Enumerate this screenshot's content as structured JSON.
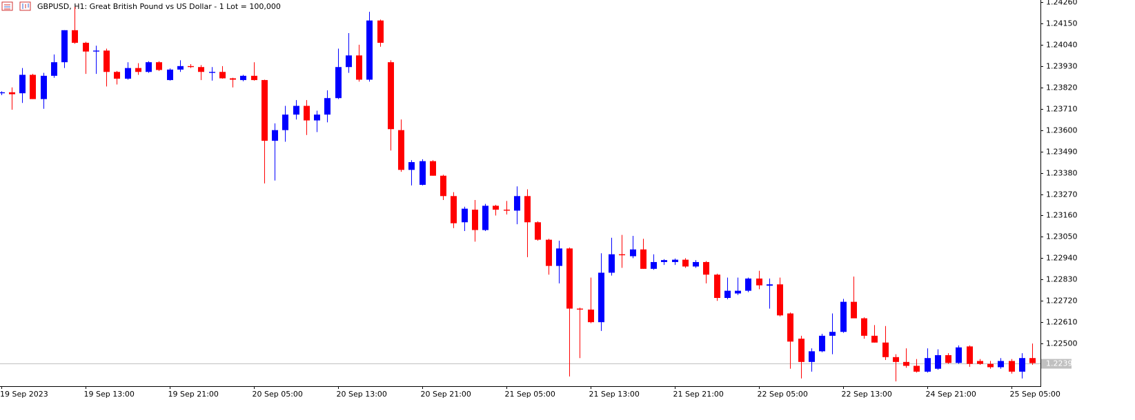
{
  "chart_data": {
    "type": "candlestick",
    "title": "GBPUSD, H1:  Great British Pound vs US Dollar - 1 Lot = 100,000",
    "categories": [
      "19 Sep 2023",
      null,
      null,
      null,
      null,
      null,
      null,
      null,
      "19 Sep 13:00",
      null,
      null,
      null,
      null,
      null,
      null,
      null,
      "19 Sep 21:00",
      null,
      null,
      null,
      null,
      null,
      null,
      null,
      "20 Sep 05:00",
      null,
      null,
      null,
      null,
      null,
      null,
      null,
      "20 Sep 13:00",
      null,
      null,
      null,
      null,
      null,
      null,
      null,
      "20 Sep 21:00",
      null,
      null,
      null,
      null,
      null,
      null,
      null,
      "21 Sep 05:00",
      null,
      null,
      null,
      null,
      null,
      null,
      null,
      "21 Sep 13:00",
      null,
      null,
      null,
      null,
      null,
      null,
      null,
      "21 Sep 21:00",
      null,
      null,
      null,
      null,
      null,
      null,
      null,
      "22 Sep 05:00",
      null,
      null,
      null,
      null,
      null,
      null,
      null,
      "22 Sep 13:00",
      null,
      null,
      null,
      null,
      null,
      null,
      null,
      "24 Sep 21:00",
      null,
      null,
      null,
      null,
      null,
      null,
      null,
      "25 Sep 05:00",
      null,
      null
    ],
    "series": [
      {
        "up_color": "#0000ff",
        "down_color": "#ff0000",
        "open": [
          1.2379,
          1.23795,
          1.2379,
          1.23885,
          1.2376,
          1.2388,
          1.2395,
          1.24115,
          1.2405,
          1.24005,
          1.2401,
          1.239,
          1.23865,
          1.2392,
          1.239,
          1.2395,
          1.23858,
          1.23912,
          1.2393,
          1.23925,
          1.23895,
          1.239,
          1.23867,
          1.23858,
          1.2388,
          1.23858,
          1.23545,
          1.236,
          1.2368,
          1.23725,
          1.2365,
          1.2368,
          1.23765,
          1.23925,
          1.23985,
          1.2386,
          1.24165,
          1.2395,
          1.236,
          1.23395,
          1.23318,
          1.2344,
          1.23365,
          1.2326,
          1.23125,
          1.2319,
          1.23085,
          1.2321,
          1.2319,
          1.23185,
          1.2326,
          1.23125,
          1.23035,
          1.229,
          1.2299,
          1.2268,
          1.22675,
          1.2261,
          1.22865,
          1.2296,
          1.2295,
          1.22985,
          1.22885,
          1.2292,
          1.2292,
          1.22932,
          1.22897,
          1.2292,
          1.22855,
          1.22735,
          1.22758,
          1.22772,
          1.22835,
          1.22798,
          1.22805,
          1.22655,
          1.22525,
          1.22405,
          1.2246,
          1.2254,
          1.2256,
          1.22715,
          1.2263,
          1.2254,
          1.22505,
          1.2243,
          1.22405,
          1.22385,
          1.22355,
          1.2237,
          1.2244,
          1.224,
          1.22485,
          1.2241,
          1.22395,
          1.22378,
          1.2241,
          1.22355,
          1.22425
        ],
        "high": [
          1.238,
          1.2382,
          1.2392,
          1.2389,
          1.23895,
          1.2399,
          1.24115,
          1.24235,
          1.24055,
          1.24035,
          1.2402,
          1.23905,
          1.2395,
          1.23945,
          1.23955,
          1.23955,
          1.23918,
          1.2396,
          1.2394,
          1.23935,
          1.23925,
          1.2393,
          1.2387,
          1.23885,
          1.2395,
          1.2386,
          1.23635,
          1.23725,
          1.23755,
          1.23755,
          1.237,
          1.23805,
          1.2402,
          1.241,
          1.2404,
          1.2421,
          1.2417,
          1.2396,
          1.23655,
          1.23445,
          1.2345,
          1.23445,
          1.2337,
          1.2328,
          1.23205,
          1.2324,
          1.2322,
          1.23215,
          1.23235,
          1.2331,
          1.23295,
          1.2313,
          1.2304,
          1.2303,
          1.22995,
          1.22685,
          1.2284,
          1.22965,
          1.23045,
          1.2306,
          1.23055,
          1.2304,
          1.2296,
          1.22935,
          1.22938,
          1.2294,
          1.2293,
          1.22925,
          1.2286,
          1.2284,
          1.2284,
          1.2284,
          1.22875,
          1.22835,
          1.2284,
          1.2266,
          1.2254,
          1.22475,
          1.2255,
          1.22655,
          1.2273,
          1.22845,
          1.22635,
          1.22595,
          1.2259,
          1.22445,
          1.22475,
          1.2242,
          1.22475,
          1.2247,
          1.2245,
          1.2249,
          1.2249,
          1.2242,
          1.2241,
          1.22425,
          1.2242,
          1.2245,
          1.225
        ],
        "low": [
          1.2378,
          1.23705,
          1.2374,
          1.2376,
          1.2371,
          1.2387,
          1.2392,
          1.24045,
          1.2389,
          1.2389,
          1.23825,
          1.23835,
          1.2386,
          1.23885,
          1.23895,
          1.23905,
          1.23855,
          1.239,
          1.2392,
          1.23858,
          1.23855,
          1.23865,
          1.2382,
          1.23852,
          1.23855,
          1.23325,
          1.2334,
          1.2354,
          1.23655,
          1.23575,
          1.2359,
          1.2364,
          1.2376,
          1.23895,
          1.2385,
          1.2385,
          1.2403,
          1.23495,
          1.23385,
          1.23315,
          1.23315,
          1.23365,
          1.2324,
          1.23095,
          1.2308,
          1.23025,
          1.2308,
          1.2316,
          1.23165,
          1.23115,
          1.22945,
          1.2303,
          1.22855,
          1.2281,
          1.2233,
          1.22425,
          1.22605,
          1.22565,
          1.2285,
          1.2289,
          1.2294,
          1.22885,
          1.2288,
          1.22905,
          1.22905,
          1.2289,
          1.2289,
          1.2281,
          1.2272,
          1.22728,
          1.2275,
          1.22765,
          1.2278,
          1.2268,
          1.2264,
          1.2237,
          1.2232,
          1.22355,
          1.22455,
          1.22445,
          1.22555,
          1.2263,
          1.22525,
          1.22505,
          1.22415,
          1.22305,
          1.22375,
          1.2235,
          1.2235,
          1.22365,
          1.22395,
          1.22395,
          1.2238,
          1.2239,
          1.2237,
          1.2237,
          1.22345,
          1.2232,
          1.2239
        ],
        "close": [
          1.23795,
          1.23785,
          1.23885,
          1.2376,
          1.2388,
          1.2395,
          1.24115,
          1.2405,
          1.24005,
          1.2401,
          1.239,
          1.23865,
          1.2392,
          1.239,
          1.2395,
          1.2391,
          1.23912,
          1.2393,
          1.23925,
          1.239,
          1.239,
          1.23867,
          1.2386,
          1.2388,
          1.23858,
          1.23545,
          1.236,
          1.2368,
          1.23725,
          1.2365,
          1.2368,
          1.23765,
          1.23925,
          1.23985,
          1.2386,
          1.24165,
          1.2405,
          1.23605,
          1.23395,
          1.23435,
          1.2344,
          1.23365,
          1.2326,
          1.2312,
          1.23195,
          1.23085,
          1.2321,
          1.2319,
          1.23185,
          1.2326,
          1.23125,
          1.23035,
          1.229,
          1.2299,
          1.2268,
          1.22675,
          1.2261,
          1.22865,
          1.2296,
          1.22955,
          1.22985,
          1.22885,
          1.2292,
          1.2293,
          1.22932,
          1.22897,
          1.2292,
          1.22855,
          1.22735,
          1.22772,
          1.22772,
          1.22835,
          1.228,
          1.22805,
          1.22645,
          1.2251,
          1.22405,
          1.2246,
          1.2254,
          1.2256,
          1.22715,
          1.2263,
          1.2254,
          1.22505,
          1.2243,
          1.22405,
          1.22385,
          1.22355,
          1.22425,
          1.2244,
          1.224,
          1.2248,
          1.22395,
          1.22395,
          1.22378,
          1.2241,
          1.22355,
          1.22425,
          1.22399
        ]
      }
    ],
    "last_price": 1.22399,
    "ylim": [
      1.2228,
      1.2426
    ],
    "yticks": [
      {
        "value": 1.2426,
        "label": "1.24260"
      },
      {
        "value": 1.2415,
        "label": "1.24150"
      },
      {
        "value": 1.2404,
        "label": "1.24040"
      },
      {
        "value": 1.2393,
        "label": "1.23930"
      },
      {
        "value": 1.2382,
        "label": "1.23820"
      },
      {
        "value": 1.2371,
        "label": "1.23710"
      },
      {
        "value": 1.236,
        "label": "1.23600"
      },
      {
        "value": 1.2349,
        "label": "1.23490"
      },
      {
        "value": 1.2338,
        "label": "1.23380"
      },
      {
        "value": 1.2327,
        "label": "1.23270"
      },
      {
        "value": 1.2316,
        "label": "1.23160"
      },
      {
        "value": 1.2305,
        "label": "1.23050"
      },
      {
        "value": 1.2294,
        "label": "1.22940"
      },
      {
        "value": 1.2283,
        "label": "1.22830"
      },
      {
        "value": 1.2272,
        "label": "1.22720"
      },
      {
        "value": 1.2261,
        "label": "1.22610"
      },
      {
        "value": 1.225,
        "label": "1.22500"
      }
    ],
    "grid": false
  }
}
